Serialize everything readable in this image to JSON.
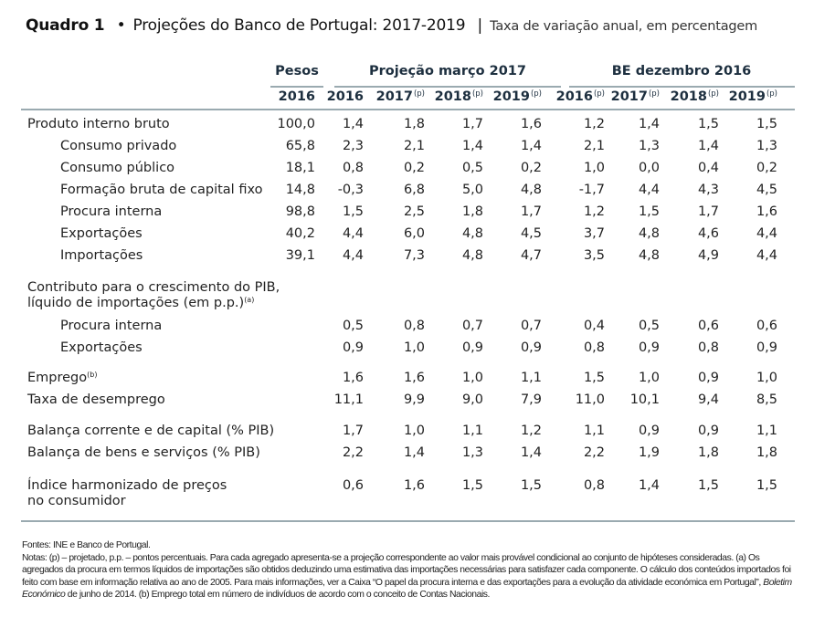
{
  "title": {
    "label": "Quadro 1",
    "bullet": "•",
    "main": "Projeções do Banco de Portugal: 2017-2019",
    "separator": "|",
    "subtitle": "Taxa de variação anual, em percentagem"
  },
  "header": {
    "groups": [
      "Pesos",
      "Projeção março 2017",
      "BE dezembro 2016"
    ],
    "years": [
      {
        "year": "2016",
        "sup": ""
      },
      {
        "year": "2016",
        "sup": ""
      },
      {
        "year": "2017",
        "sup": "(p)"
      },
      {
        "year": "2018",
        "sup": "(p)"
      },
      {
        "year": "2019",
        "sup": "(p)"
      },
      {
        "year": "2016",
        "sup": "(p)"
      },
      {
        "year": "2017",
        "sup": "(p)"
      },
      {
        "year": "2018",
        "sup": "(p)"
      },
      {
        "year": "2019",
        "sup": "(p)"
      }
    ]
  },
  "rows": [
    {
      "label": "Produto interno bruto",
      "indent": false,
      "values": [
        "100,0",
        "1,4",
        "1,8",
        "1,7",
        "1,6",
        "1,2",
        "1,4",
        "1,5",
        "1,5"
      ]
    },
    {
      "label": "Consumo privado",
      "indent": true,
      "values": [
        "65,8",
        "2,3",
        "2,1",
        "1,4",
        "1,4",
        "2,1",
        "1,3",
        "1,4",
        "1,3"
      ]
    },
    {
      "label": "Consumo público",
      "indent": true,
      "values": [
        "18,1",
        "0,8",
        "0,2",
        "0,5",
        "0,2",
        "1,0",
        "0,0",
        "0,4",
        "0,2"
      ]
    },
    {
      "label": "Formação bruta de capital fixo",
      "indent": true,
      "values": [
        "14,8",
        "-0,3",
        "6,8",
        "5,0",
        "4,8",
        "-1,7",
        "4,4",
        "4,3",
        "4,5"
      ]
    },
    {
      "label": "Procura interna",
      "indent": true,
      "values": [
        "98,8",
        "1,5",
        "2,5",
        "1,8",
        "1,7",
        "1,2",
        "1,5",
        "1,7",
        "1,6"
      ]
    },
    {
      "label": "Exportações",
      "indent": true,
      "values": [
        "40,2",
        "4,4",
        "6,0",
        "4,8",
        "4,5",
        "3,7",
        "4,8",
        "4,6",
        "4,4"
      ]
    },
    {
      "label": "Importações",
      "indent": true,
      "values": [
        "39,1",
        "4,4",
        "7,3",
        "4,8",
        "4,7",
        "3,5",
        "4,8",
        "4,9",
        "4,4"
      ]
    },
    {
      "label": "Contributo para o crescimento do PIB,",
      "indent": false,
      "values": []
    },
    {
      "label": "líquido de importações (em p.p.)",
      "sup": "(a)",
      "indent": false,
      "values": []
    },
    {
      "label": "Procura interna",
      "indent": true,
      "values": [
        "",
        "0,5",
        "0,8",
        "0,7",
        "0,7",
        "0,4",
        "0,5",
        "0,6",
        "0,6"
      ]
    },
    {
      "label": "Exportações",
      "indent": true,
      "values": [
        "",
        "0,9",
        "1,0",
        "0,9",
        "0,9",
        "0,8",
        "0,9",
        "0,8",
        "0,9"
      ]
    },
    {
      "label": "Emprego",
      "sup": "(b)",
      "indent": false,
      "values": [
        "",
        "1,6",
        "1,6",
        "1,0",
        "1,1",
        "1,5",
        "1,0",
        "0,9",
        "1,0"
      ]
    },
    {
      "label": "Taxa de desemprego",
      "indent": false,
      "values": [
        "",
        "11,1",
        "9,9",
        "9,0",
        "7,9",
        "11,0",
        "10,1",
        "9,4",
        "8,5"
      ]
    },
    {
      "label": "Balança corrente e de capital (% PIB)",
      "indent": false,
      "values": [
        "",
        "1,7",
        "1,0",
        "1,1",
        "1,2",
        "1,1",
        "0,9",
        "0,9",
        "1,1"
      ]
    },
    {
      "label": "Balança de bens e serviços (% PIB)",
      "indent": false,
      "values": [
        "",
        "2,2",
        "1,4",
        "1,3",
        "1,4",
        "2,2",
        "1,9",
        "1,8",
        "1,8"
      ]
    },
    {
      "label": "Índice harmonizado de preços",
      "indent": false,
      "values": [
        "",
        "0,6",
        "1,6",
        "1,5",
        "1,5",
        "0,8",
        "1,4",
        "1,5",
        "1,5"
      ]
    },
    {
      "label": "no consumidor",
      "indent": false,
      "values": []
    }
  ],
  "notes": {
    "sources": "Fontes: INE e Banco de Portugal.",
    "line1": "Notas: (p) – projetado, p.p. – pontos percentuais. Para cada agregado apresenta-se a projeção correspondente ao valor mais provável condicional ao conjunto de hipóteses consideradas. (a) Os agregados da procura em termos líquidos de importações são obtidos deduzindo uma estimativa das importações necessárias para satisfazer cada componente. O cálculo dos conteúdos importados foi feito com base em informação relativa ao ano de 2005. Para mais informações, ver a Caixa “O papel da procura interna e das exportações para a evolução da atividade económica em Portugal”, ",
    "italic": "Boletim Económico",
    "line2": " de junho de 2014. (b) Emprego total em número de indivíduos de acordo com o conceito de Contas Nacionais."
  }
}
